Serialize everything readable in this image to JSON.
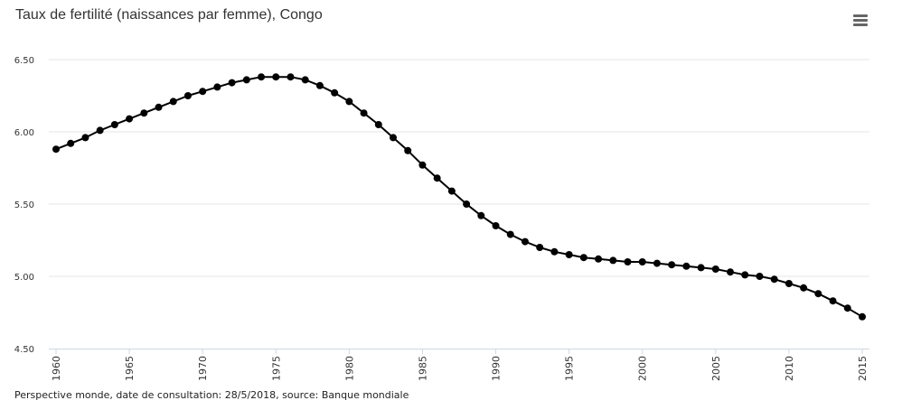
{
  "title": "Taux de fertilité (naissances par femme), Congo",
  "source": "Perspective monde, date de consultation: 28/5/2018, source: Banque mondiale",
  "menu_icon": "hamburger-menu-icon",
  "colors": {
    "line": "#000000",
    "point": "#000000",
    "grid": "#e6e6e6",
    "axis": "#ccd6eb",
    "text": "#333333"
  },
  "chart_data": {
    "type": "line",
    "title": "Taux de fertilité (naissances par femme), Congo",
    "xlabel": "",
    "ylabel": "",
    "grid": true,
    "ylim": [
      4.5,
      6.5
    ],
    "yticks": [
      "4.50",
      "5.00",
      "5.50",
      "6.00",
      "6.50"
    ],
    "xticks": [
      "1960",
      "1965",
      "1970",
      "1975",
      "1980",
      "1985",
      "1990",
      "1995",
      "2000",
      "2005",
      "2010",
      "2015"
    ],
    "x": [
      1960,
      1961,
      1962,
      1963,
      1964,
      1965,
      1966,
      1967,
      1968,
      1969,
      1970,
      1971,
      1972,
      1973,
      1974,
      1975,
      1976,
      1977,
      1978,
      1979,
      1980,
      1981,
      1982,
      1983,
      1984,
      1985,
      1986,
      1987,
      1988,
      1989,
      1990,
      1991,
      1992,
      1993,
      1994,
      1995,
      1996,
      1997,
      1998,
      1999,
      2000,
      2001,
      2002,
      2003,
      2004,
      2005,
      2006,
      2007,
      2008,
      2009,
      2010,
      2011,
      2012,
      2013,
      2014,
      2015
    ],
    "series": [
      {
        "values": [
          5.88,
          5.92,
          5.96,
          6.01,
          6.05,
          6.09,
          6.13,
          6.17,
          6.21,
          6.25,
          6.28,
          6.31,
          6.34,
          6.36,
          6.38,
          6.38,
          6.38,
          6.36,
          6.32,
          6.27,
          6.21,
          6.13,
          6.05,
          5.96,
          5.87,
          5.77,
          5.68,
          5.59,
          5.5,
          5.42,
          5.35,
          5.29,
          5.24,
          5.2,
          5.17,
          5.15,
          5.13,
          5.12,
          5.11,
          5.1,
          5.1,
          5.09,
          5.08,
          5.07,
          5.06,
          5.05,
          5.03,
          5.01,
          5.0,
          4.98,
          4.95,
          4.92,
          4.88,
          4.83,
          4.78,
          4.72
        ]
      }
    ]
  }
}
